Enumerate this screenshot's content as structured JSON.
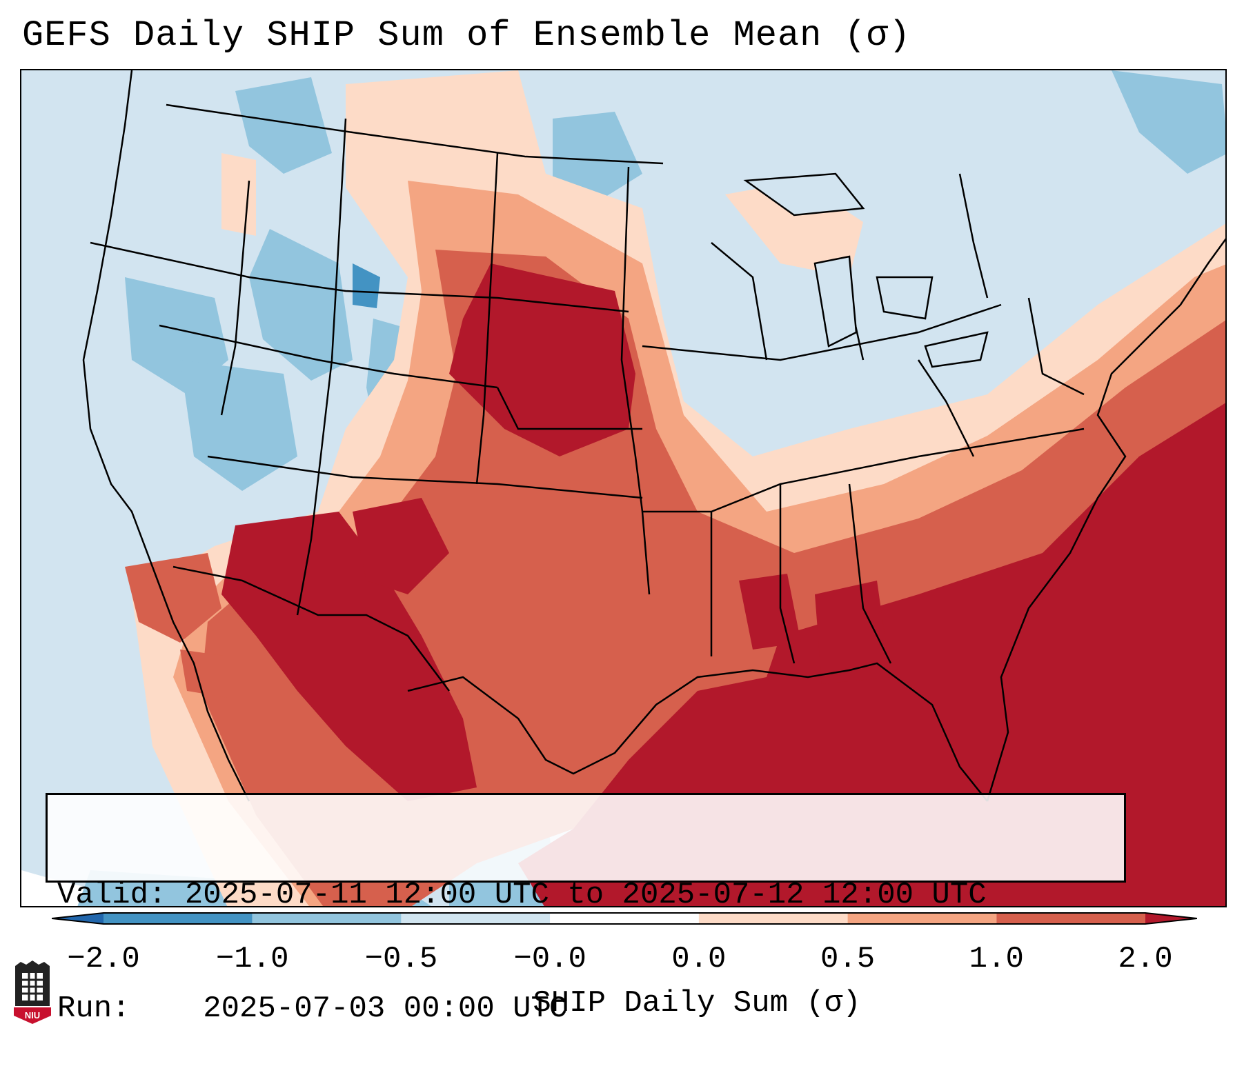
{
  "title": "GEFS Daily SHIP Sum of Ensemble Mean (σ)",
  "info": {
    "valid_label": "Valid:",
    "valid_range": "2025-07-11 12:00 UTC to 2025-07-12 12:00 UTC",
    "run_label": "Run:",
    "run_time": "2025-07-03 00:00 UTC"
  },
  "colorbar": {
    "label": "SHIP Daily Sum (σ)",
    "levels": [
      {
        "range": "< -2.0",
        "color": "#2166ac"
      },
      {
        "range": "-2.0 to -1.0",
        "color": "#4393c3"
      },
      {
        "range": "-1.0 to -0.5",
        "color": "#92c5de"
      },
      {
        "range": "-0.5 to -0.0",
        "color": "#d1e5f0"
      },
      {
        "range": "-0.0 to 0.0",
        "color": "#ffffff"
      },
      {
        "range": "0.0 to 0.5",
        "color": "#fddbc7"
      },
      {
        "range": "0.5 to 1.0",
        "color": "#f4a582"
      },
      {
        "range": "1.0 to 2.0",
        "color": "#d6604d"
      },
      {
        "range": "> 2.0",
        "color": "#b2182b"
      }
    ],
    "ticks": [
      "−2.0",
      "−1.0",
      "−0.5",
      "−0.0",
      "0.0",
      "0.5",
      "1.0",
      "2.0"
    ]
  },
  "logo": {
    "text": "NIU",
    "color": "#c8102e"
  }
}
